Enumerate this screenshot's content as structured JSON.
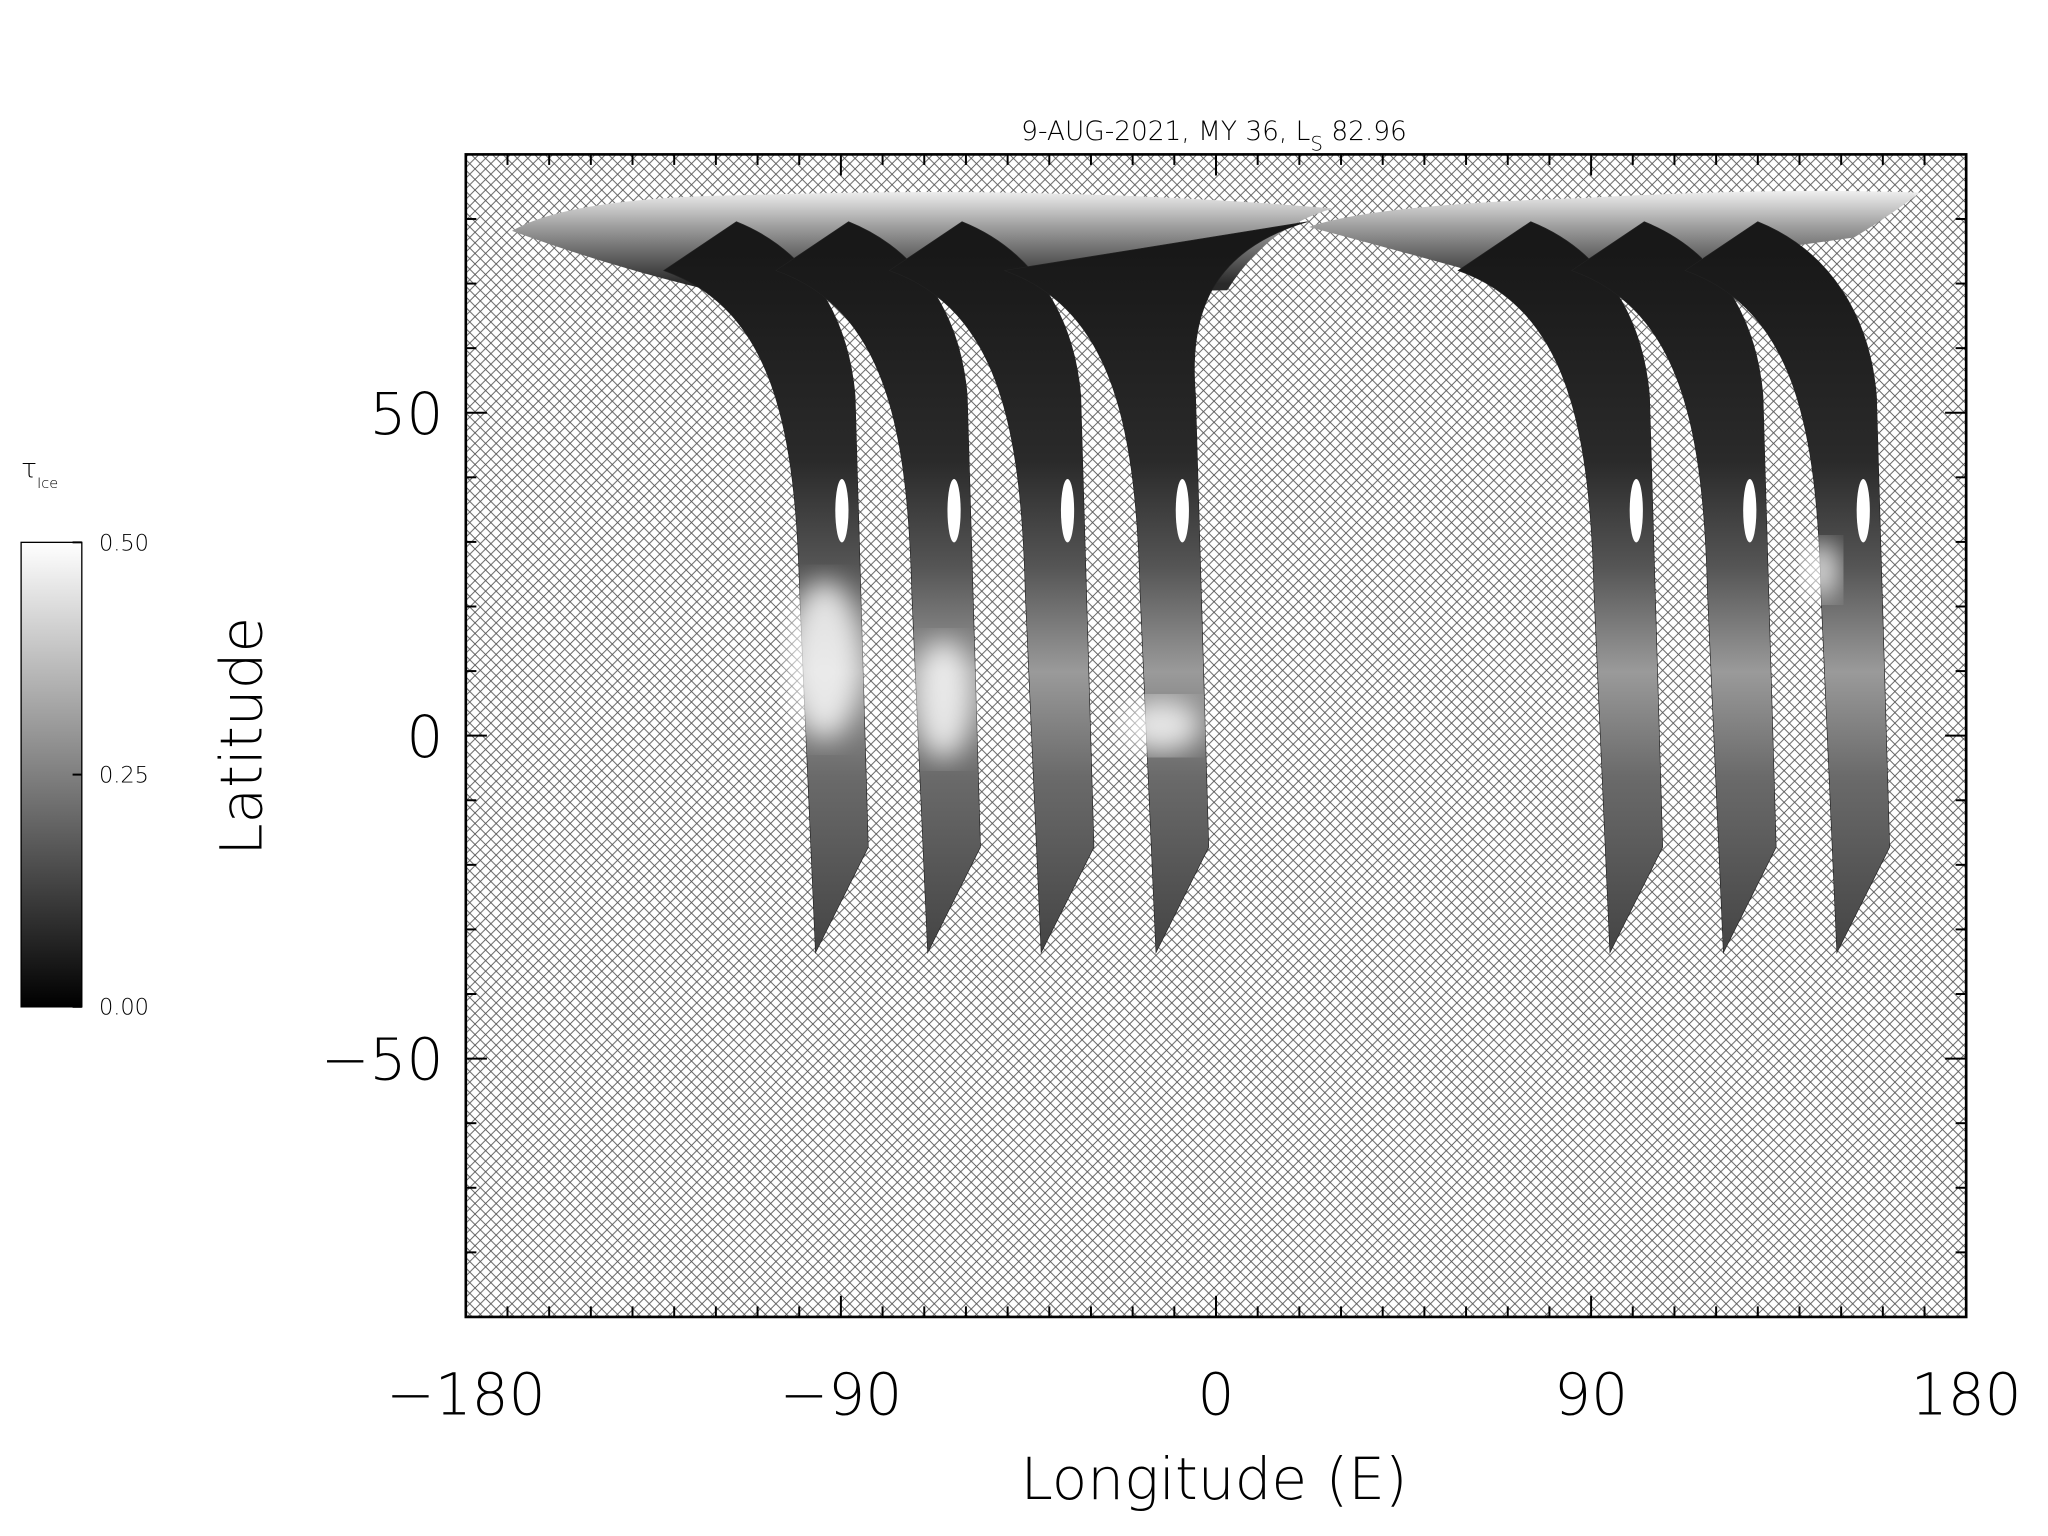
{
  "chart_data": {
    "type": "map",
    "title": "9-AUG-2021, MY 36,  L",
    "title_subscript": "S",
    "title_end": " 82.96",
    "xlabel": "Longitude (E)",
    "ylabel": "Latitude",
    "xlim": [
      -180,
      180
    ],
    "ylim": [
      -90,
      90
    ],
    "xticks": [
      {
        "value": -180,
        "label": "−180"
      },
      {
        "value": -90,
        "label": "−90"
      },
      0,
      90,
      180
    ],
    "yticks": [
      {
        "value": -50,
        "label": "−50"
      },
      0,
      50
    ],
    "xminorticks": [
      -170,
      -160,
      -150,
      -140,
      -130,
      -120,
      -110,
      -100,
      -80,
      -70,
      -60,
      -50,
      -40,
      -30,
      -20,
      -10,
      10,
      20,
      30,
      40,
      50,
      60,
      70,
      80,
      100,
      110,
      120,
      130,
      140,
      150,
      160,
      170
    ],
    "yminorticks": [
      -80,
      -70,
      -60,
      -40,
      -30,
      -20,
      -10,
      10,
      20,
      30,
      40,
      60,
      70,
      80
    ],
    "colorbar": {
      "label": "τ",
      "label_subscript": "Ice",
      "clim": [
        0,
        0.5
      ],
      "ticks": [
        {
          "value": 0,
          "label": "0.00"
        },
        {
          "value": 0.25,
          "label": "0.25"
        },
        {
          "value": 0.5,
          "label": "0.50"
        }
      ]
    }
  }
}
